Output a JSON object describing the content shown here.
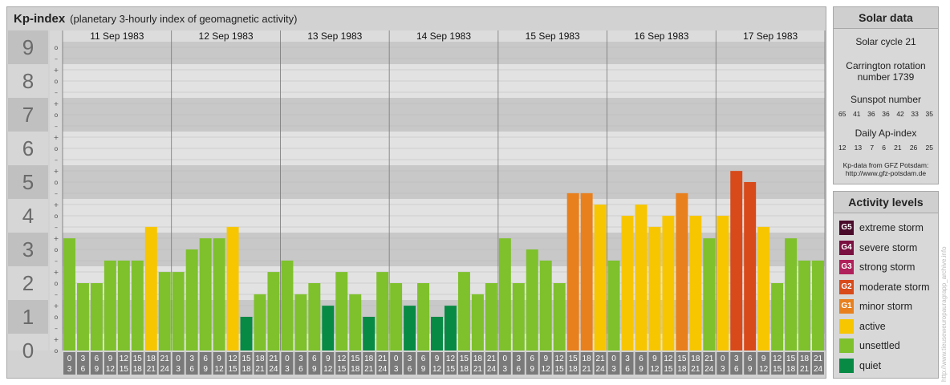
{
  "header": {
    "title": "Kp-index",
    "subtitle": "(planetary 3-hourly index of geomagnetic activity)"
  },
  "solar": {
    "title": "Solar data",
    "cycle": "Solar cycle 21",
    "carrington_line1": "Carrington rotation",
    "carrington_line2": "number 1739",
    "sunspot_title": "Sunspot number",
    "sunspot_values": [
      "65",
      "41",
      "36",
      "36",
      "42",
      "33",
      "35"
    ],
    "ap_title": "Daily Ap-index",
    "ap_values": [
      "12",
      "13",
      "7",
      "6",
      "21",
      "26",
      "25"
    ],
    "source_line1": "Kp-data from GFZ Potsdam:",
    "source_line2": "http://www.gfz-potsdam.de"
  },
  "legend": {
    "title": "Activity levels",
    "items": [
      {
        "badge": "G5",
        "label": "extreme storm",
        "color": "#4a0a2a"
      },
      {
        "badge": "G4",
        "label": "severe storm",
        "color": "#7a1040"
      },
      {
        "badge": "G3",
        "label": "strong storm",
        "color": "#b0205a"
      },
      {
        "badge": "G2",
        "label": "moderate storm",
        "color": "#d84a1a"
      },
      {
        "badge": "G1",
        "label": "minor storm",
        "color": "#e8801e"
      },
      {
        "badge": "",
        "label": "active",
        "color": "#f7c600"
      },
      {
        "badge": "",
        "label": "unsettled",
        "color": "#7ec12c"
      },
      {
        "badge": "",
        "label": "quiet",
        "color": "#078a44"
      }
    ]
  },
  "watermark": "http://www.tieuseweuropauragrapp_archive.info",
  "chart_data": {
    "type": "bar",
    "y_ticks": [
      "0",
      "1",
      "2",
      "3",
      "4",
      "5",
      "6",
      "7",
      "8",
      "9"
    ],
    "ylim": [
      0,
      9
    ],
    "days": [
      "11 Sep 1983",
      "12 Sep 1983",
      "13 Sep 1983",
      "14 Sep 1983",
      "15 Sep 1983",
      "16 Sep 1983",
      "17 Sep 1983"
    ],
    "hour_labels": [
      [
        "0",
        "3"
      ],
      [
        "3",
        "6"
      ],
      [
        "6",
        "9"
      ],
      [
        "9",
        "12"
      ],
      [
        "12",
        "15"
      ],
      [
        "15",
        "18"
      ],
      [
        "18",
        "21"
      ],
      [
        "21",
        "24"
      ]
    ],
    "values": [
      [
        3.33,
        2.0,
        2.0,
        2.67,
        2.67,
        2.67,
        3.67,
        2.33
      ],
      [
        2.33,
        3.0,
        3.33,
        3.33,
        3.67,
        1.0,
        1.67,
        2.33
      ],
      [
        2.67,
        1.67,
        2.0,
        1.33,
        2.33,
        1.67,
        1.0,
        2.33
      ],
      [
        2.0,
        1.33,
        2.0,
        1.0,
        1.33,
        2.33,
        1.67,
        2.0
      ],
      [
        3.33,
        2.0,
        3.0,
        2.67,
        2.0,
        4.67,
        4.67,
        4.33
      ],
      [
        2.67,
        4.0,
        4.33,
        3.67,
        4.0,
        4.67,
        4.0,
        3.33
      ],
      [
        4.0,
        5.33,
        5.0,
        3.67,
        2.0,
        3.33,
        2.67,
        2.67
      ]
    ],
    "colors": {
      "quiet": "#078a44",
      "unsettled": "#7ec12c",
      "active": "#f7c600",
      "minor": "#e8801e",
      "moderate": "#d84a1a"
    }
  }
}
